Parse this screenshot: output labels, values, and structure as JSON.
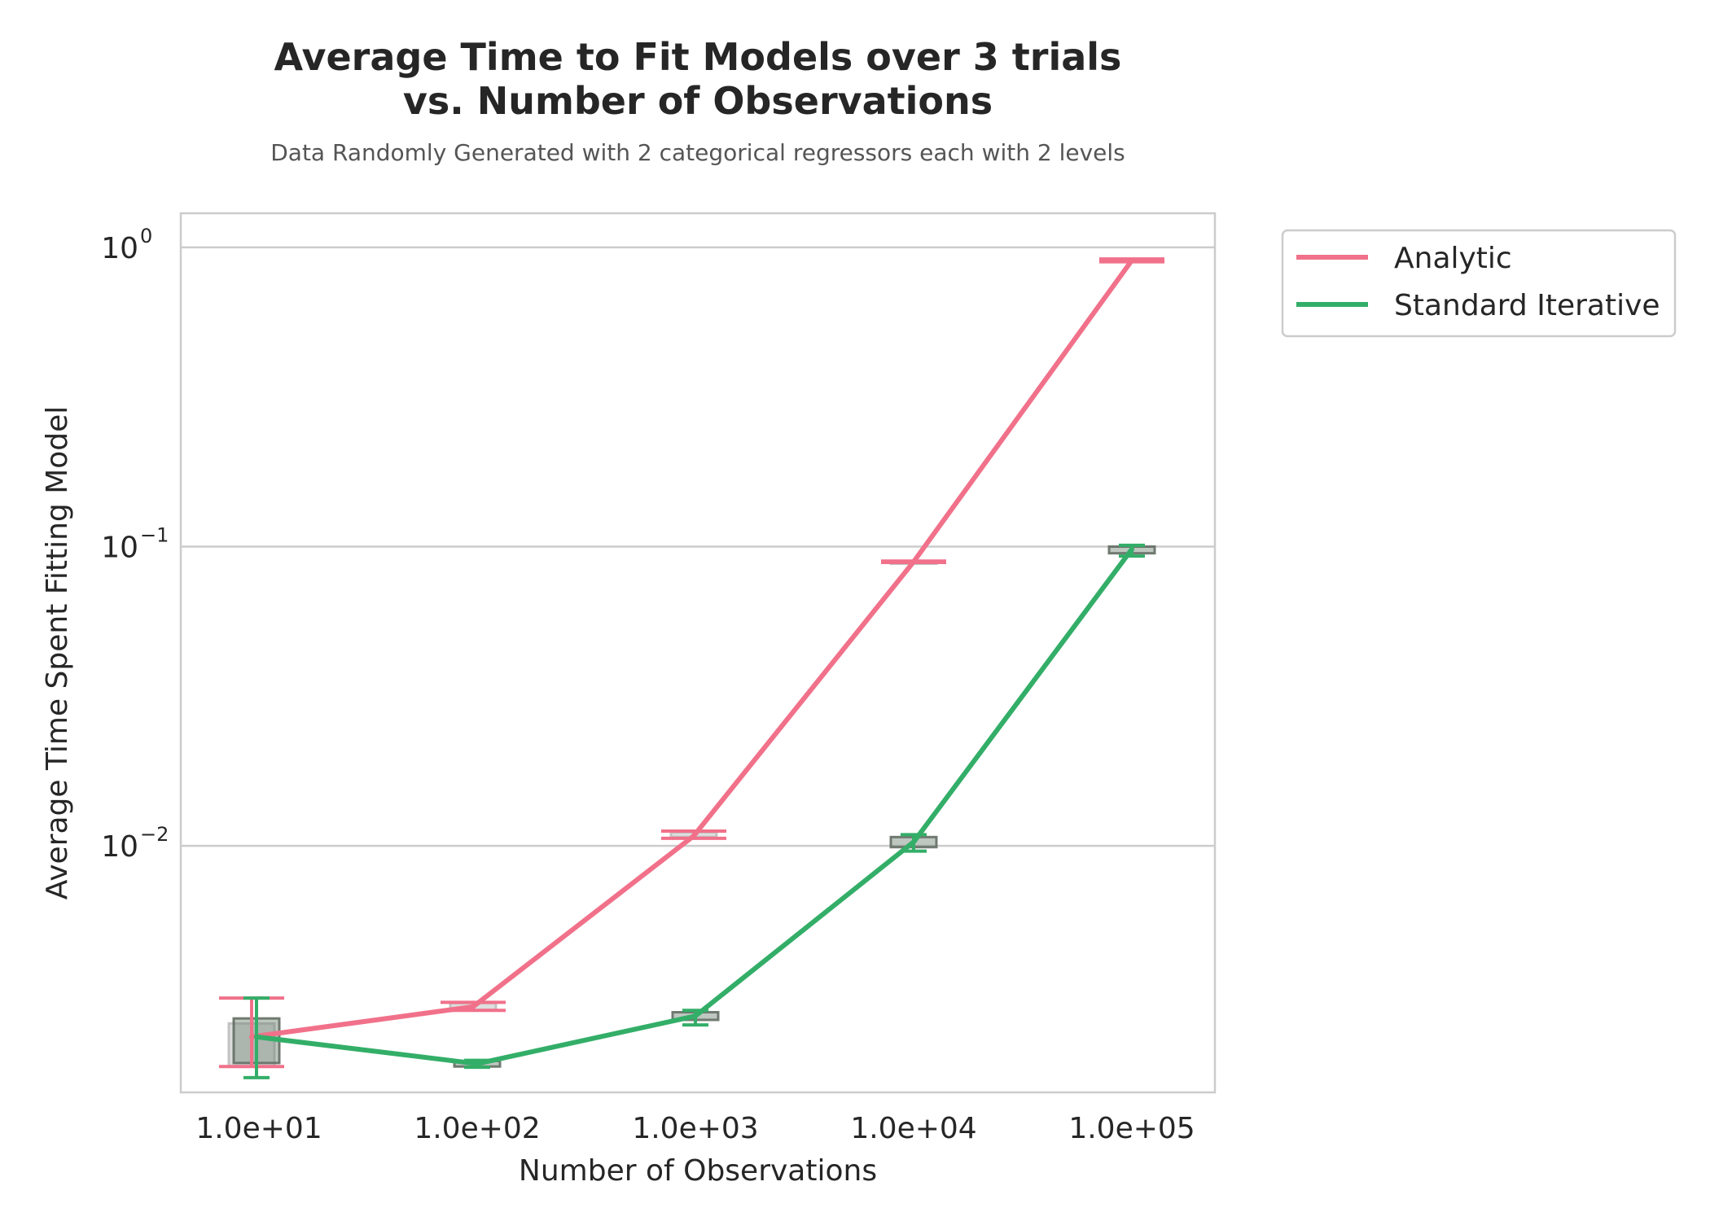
{
  "chart_data": {
    "type": "line",
    "title": [
      "Average Time to Fit Models over 3 trials",
      "vs. Number of Observations"
    ],
    "subtitle": "Data Randomly Generated with 2 categorical regressors each with 2 levels",
    "xlabel": "Number of Observations",
    "ylabel": "Average Time Spent Fitting Model",
    "x_categories": [
      "1.0e+01",
      "1.0e+02",
      "1.0e+03",
      "1.0e+04",
      "1.0e+05"
    ],
    "y_scale": "log",
    "ylim": [
      0.0015,
      1.3
    ],
    "y_ticks": [
      {
        "value": 1,
        "base": "10",
        "exp": "0"
      },
      {
        "value": 0.1,
        "base": "10",
        "exp": "−1"
      },
      {
        "value": 0.01,
        "base": "10",
        "exp": "−2"
      }
    ],
    "grid": "horizontal",
    "legend_position": "outside-top-right",
    "series": [
      {
        "name": "Analytic",
        "color": "#f1718a",
        "values": [
          0.0023,
          0.0029,
          0.0108,
          0.089,
          0.905
        ],
        "err_low": [
          0.00183,
          0.00282,
          0.0106,
          0.0885,
          0.895
        ],
        "err_high": [
          0.0031,
          0.003,
          0.0112,
          0.0895,
          0.915
        ],
        "box_low": [
          0.00183,
          0.00283,
          0.0107,
          0.0887,
          0.898
        ],
        "box_high": [
          0.00255,
          0.00298,
          0.0111,
          0.0893,
          0.912
        ]
      },
      {
        "name": "Standard Iterative",
        "color": "#33ae68",
        "values": [
          0.0023,
          0.00187,
          0.0027,
          0.0103,
          0.098
        ],
        "err_low": [
          0.00168,
          0.00182,
          0.00252,
          0.0096,
          0.093
        ],
        "err_high": [
          0.0031,
          0.00192,
          0.00282,
          0.0109,
          0.101
        ],
        "box_low": [
          0.00188,
          0.00183,
          0.00262,
          0.0099,
          0.095
        ],
        "box_high": [
          0.00265,
          0.00191,
          0.00278,
          0.0107,
          0.1
        ]
      }
    ]
  }
}
